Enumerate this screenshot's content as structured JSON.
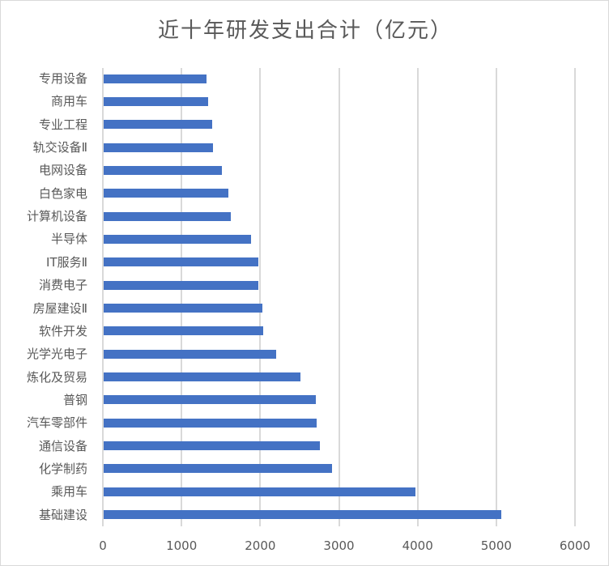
{
  "chart_data": {
    "type": "bar",
    "orientation": "horizontal",
    "title": "近十年研发支出合计（亿元）",
    "xlabel": "",
    "ylabel": "",
    "xlim": [
      0,
      6000
    ],
    "xticks": [
      "0",
      "1000",
      "2000",
      "3000",
      "4000",
      "5000",
      "6000"
    ],
    "grid": true,
    "legend": null,
    "bar_color": "#4472c4",
    "categories": [
      "专用设备",
      "商用车",
      "专业工程",
      "轨交设备Ⅱ",
      "电网设备",
      "白色家电",
      "计算机设备",
      "半导体",
      "IT服务Ⅱ",
      "消费电子",
      "房屋建设Ⅱ",
      "软件开发",
      "光学光电子",
      "炼化及贸易",
      "普钢",
      "汽车零部件",
      "通信设备",
      "化学制药",
      "乘用车",
      "基础建设"
    ],
    "values": [
      1305,
      1330,
      1380,
      1390,
      1500,
      1585,
      1615,
      1870,
      1965,
      1965,
      2015,
      2025,
      2190,
      2500,
      2695,
      2705,
      2745,
      2900,
      3960,
      5050
    ]
  }
}
